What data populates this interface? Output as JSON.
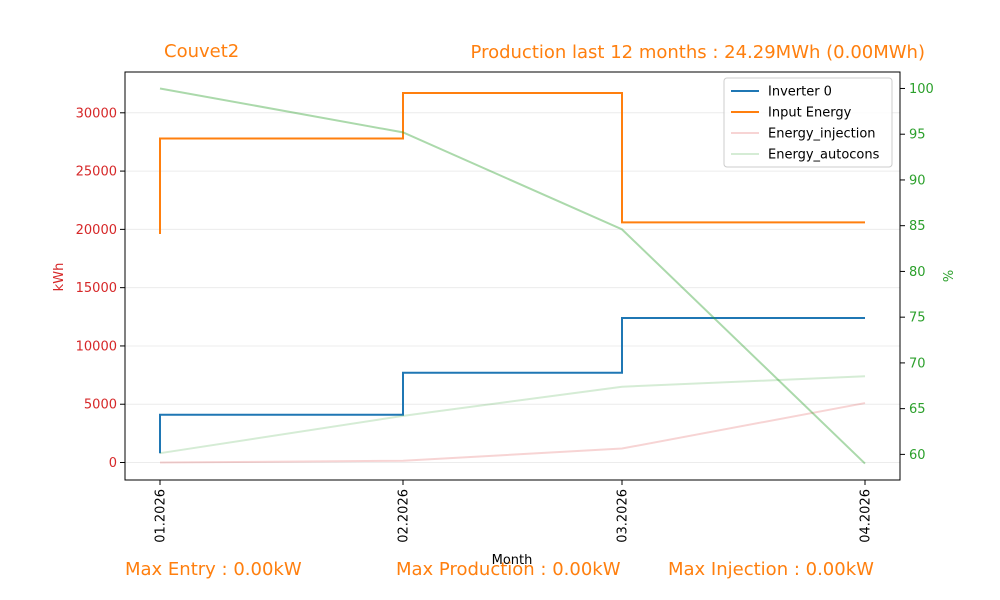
{
  "header": {
    "site_title": "Couvet2",
    "production_summary": "Production last 12 months : 24.29MWh (0.00MWh)"
  },
  "footer": {
    "max_entry": "Max Entry : 0.00kW",
    "max_production": "Max Production : 0.00kW",
    "max_injection": "Max Injection : 0.00kW"
  },
  "colors": {
    "accent_text": "#ff7f0e",
    "left_axis": "#d62728",
    "right_axis": "#2ca02c"
  },
  "chart_data": {
    "type": "line",
    "x": [
      "01.2026",
      "02.2026",
      "03.2026",
      "04.2026"
    ],
    "xlabel": "Month",
    "ylabel": "kWh",
    "y2label": "%",
    "ylim": [
      -1500,
      33500
    ],
    "y2lim": [
      57.2,
      101.8
    ],
    "yticks": [
      0,
      5000,
      10000,
      15000,
      20000,
      25000,
      30000
    ],
    "y2ticks": [
      60,
      65,
      70,
      75,
      80,
      85,
      90,
      95,
      100
    ],
    "legend_position": "top-right",
    "series": [
      {
        "name": "Inverter 0",
        "axis": "left",
        "style": "step",
        "color": "#1f77b4",
        "start": 800,
        "values": [
          4100,
          7700,
          12400,
          12400
        ]
      },
      {
        "name": "Input Energy",
        "axis": "left",
        "style": "step",
        "color": "#ff7f0e",
        "start": 19600,
        "values": [
          27800,
          31700,
          20600,
          20600
        ]
      },
      {
        "name": "Energy_injection",
        "axis": "left",
        "style": "line",
        "color": "#d62728",
        "opacity": 0.2,
        "values": [
          0,
          150,
          1200,
          5100
        ]
      },
      {
        "name": "Energy_autocons",
        "axis": "left",
        "style": "line",
        "color": "#2ca02c",
        "opacity": 0.2,
        "values": [
          800,
          4000,
          6500,
          7400
        ]
      },
      {
        "name": "",
        "axis": "right",
        "style": "line",
        "color": "#2ca02c",
        "opacity": 0.4,
        "values": [
          100,
          95.2,
          84.6,
          59
        ]
      }
    ]
  }
}
